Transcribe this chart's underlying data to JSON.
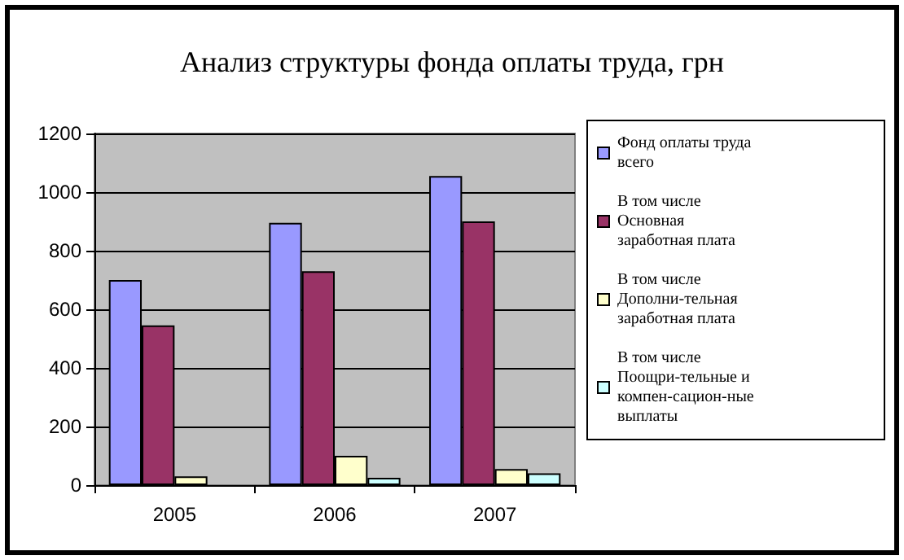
{
  "chart_data": {
    "type": "bar",
    "title": "Анализ структуры фонда оплаты труда, грн",
    "categories": [
      "2005",
      "2006",
      "2007"
    ],
    "series": [
      {
        "name": "Фонд оплаты труда всего",
        "color": "#9999ff",
        "values": [
          700,
          895,
          1055
        ]
      },
      {
        "name": "В том числе Основная заработная плата",
        "color": "#993366",
        "values": [
          545,
          730,
          900
        ]
      },
      {
        "name": "В том числе Дополни-тельная заработная плата",
        "color": "#ffffcc",
        "values": [
          30,
          100,
          55
        ]
      },
      {
        "name": "В том числе Поощри-тельные и компен-сацион-ные выплаты",
        "color": "#ccffff",
        "values": [
          null,
          25,
          40
        ]
      }
    ],
    "ylim": [
      0,
      1200
    ],
    "yticks": [
      0,
      200,
      400,
      600,
      800,
      1000,
      1200
    ],
    "grid": "y",
    "legend": "right"
  }
}
